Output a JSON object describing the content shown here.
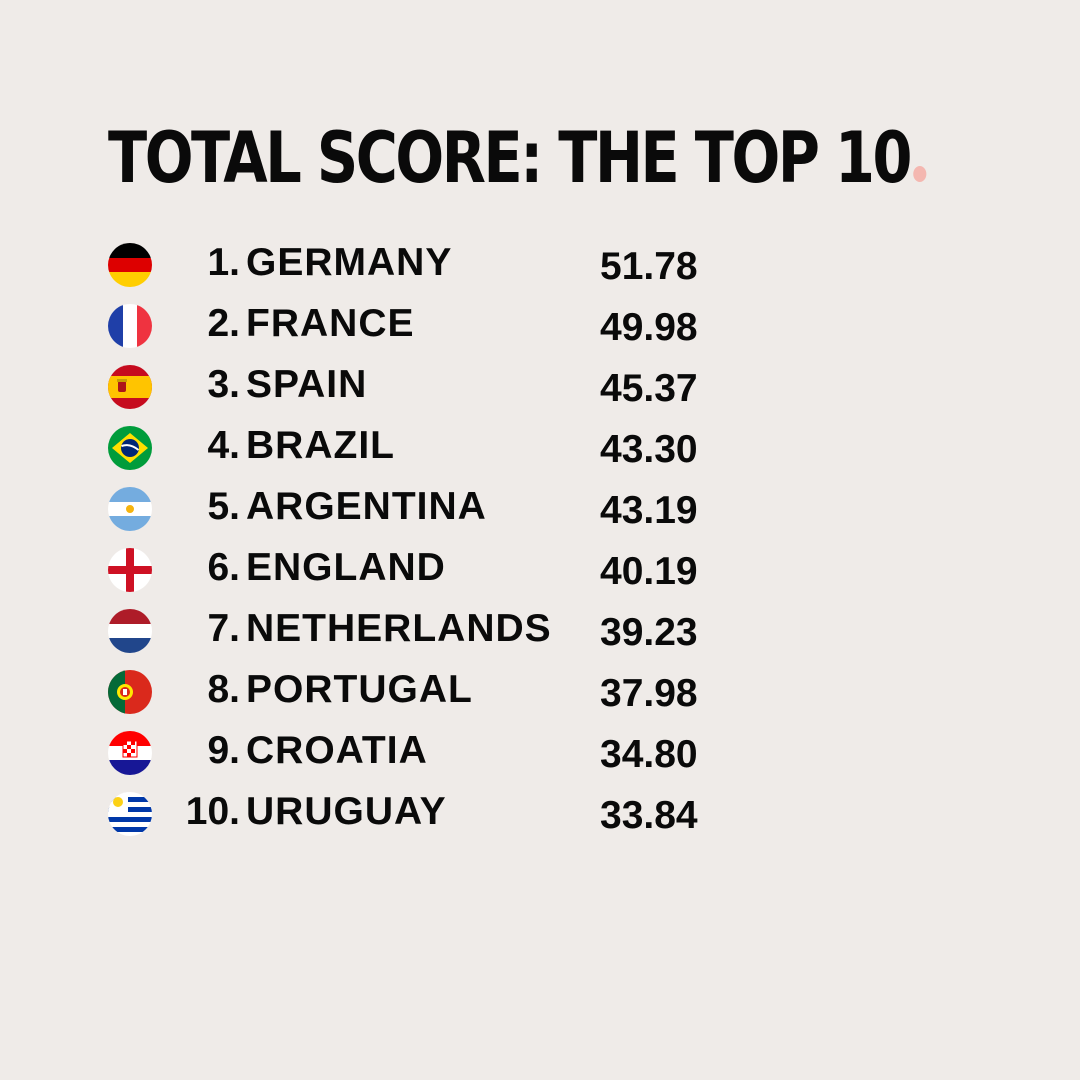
{
  "title": "TOTAL SCORE: THE TOP 10",
  "title_dot_color": "#f4b7b0",
  "rows": [
    {
      "rank": "1.",
      "country": "GERMANY",
      "score": "51.78",
      "flag": "germany-flag-icon"
    },
    {
      "rank": "2.",
      "country": "FRANCE",
      "score": "49.98",
      "flag": "france-flag-icon"
    },
    {
      "rank": "3.",
      "country": "SPAIN",
      "score": "45.37",
      "flag": "spain-flag-icon"
    },
    {
      "rank": "4.",
      "country": "BRAZIL",
      "score": "43.30",
      "flag": "brazil-flag-icon"
    },
    {
      "rank": "5.",
      "country": "ARGENTINA",
      "score": "43.19",
      "flag": "argentina-flag-icon"
    },
    {
      "rank": "6.",
      "country": "ENGLAND",
      "score": "40.19",
      "flag": "england-flag-icon"
    },
    {
      "rank": "7.",
      "country": "NETHERLANDS",
      "score": "39.23",
      "flag": "netherlands-flag-icon"
    },
    {
      "rank": "8.",
      "country": "PORTUGAL",
      "score": "37.98",
      "flag": "portugal-flag-icon"
    },
    {
      "rank": "9.",
      "country": "CROATIA",
      "score": "34.80",
      "flag": "croatia-flag-icon"
    },
    {
      "rank": "10.",
      "country": "URUGUAY",
      "score": "33.84",
      "flag": "uruguay-flag-icon"
    }
  ]
}
